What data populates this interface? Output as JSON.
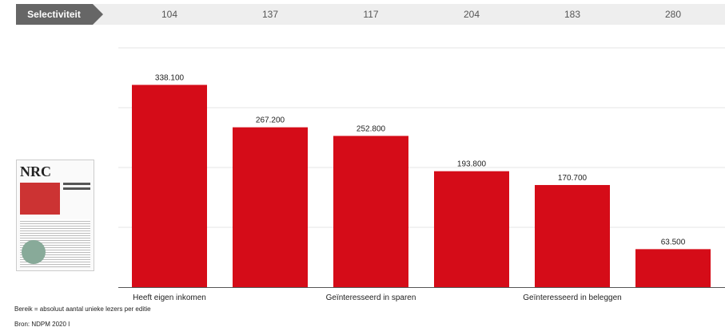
{
  "selectivity": {
    "label": "Selectiviteit",
    "values": [
      "104",
      "137",
      "117",
      "204",
      "183",
      "280"
    ]
  },
  "newspaper": {
    "logo_text": "NRC"
  },
  "colors": {
    "bar": "#d50c18",
    "tag": "#666666",
    "grid": "#e6e6e6",
    "axis": "#555555"
  },
  "chart_data": {
    "type": "bar",
    "categories": [
      "Heeft eigen inkomen",
      "",
      "Geïnteresseerd in sparen",
      "",
      "Geïnteresseerd in beleggen",
      ""
    ],
    "values": [
      338100,
      267200,
      252800,
      193800,
      170700,
      63500
    ],
    "value_labels": [
      "338.100",
      "267.200",
      "252.800",
      "193.800",
      "170.700",
      "63.500"
    ],
    "ylim": [
      0,
      400000
    ],
    "grid": true,
    "title": "",
    "xlabel": "",
    "ylabel": ""
  },
  "footer": {
    "note": "Bereik = absoluut aantal unieke lezers per editie",
    "source": "Bron: NDPM 2020 I"
  }
}
